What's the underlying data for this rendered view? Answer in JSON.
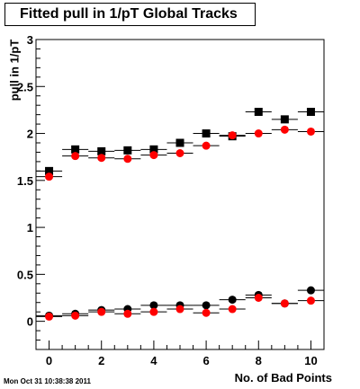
{
  "title": "Fitted pull in 1/pT  Global Tracks",
  "timestamp": "Mon Oct 31 10:38:38 2011",
  "chart_data": {
    "type": "scatter",
    "title": "Fitted pull in 1/pT  Global Tracks",
    "xlabel": "No. of Bad Points",
    "ylabel": "pull in 1/pT",
    "xlim": [
      -0.5,
      10.5
    ],
    "ylim": [
      -0.3,
      3
    ],
    "xticks": [
      0,
      2,
      4,
      6,
      8,
      10
    ],
    "yticks": [
      0,
      0.5,
      1,
      1.5,
      2,
      2.5,
      3
    ],
    "ytick_labels": [
      "0",
      "0.5",
      "1",
      "1.5",
      "2",
      "2.5",
      "3"
    ],
    "x": [
      0,
      1,
      2,
      3,
      4,
      5,
      6,
      7,
      8,
      9,
      10
    ],
    "series": [
      {
        "marker": "square",
        "color": "#000000",
        "values": [
          1.6,
          1.83,
          1.81,
          1.82,
          1.83,
          1.9,
          2.0,
          1.97,
          2.23,
          2.15,
          2.23
        ]
      },
      {
        "marker": "circle",
        "color": "#ff0000",
        "values": [
          1.54,
          1.76,
          1.74,
          1.73,
          1.77,
          1.79,
          1.87,
          1.98,
          2.0,
          2.04,
          2.02
        ]
      },
      {
        "marker": "circle",
        "color": "#000000",
        "values": [
          0.06,
          0.08,
          0.12,
          0.13,
          0.17,
          0.17,
          0.17,
          0.23,
          0.28,
          0.19,
          0.33
        ]
      },
      {
        "marker": "circle",
        "color": "#ff0000",
        "values": [
          0.05,
          0.06,
          0.1,
          0.08,
          0.1,
          0.13,
          0.09,
          0.13,
          0.25,
          0.19,
          0.22
        ]
      }
    ]
  }
}
